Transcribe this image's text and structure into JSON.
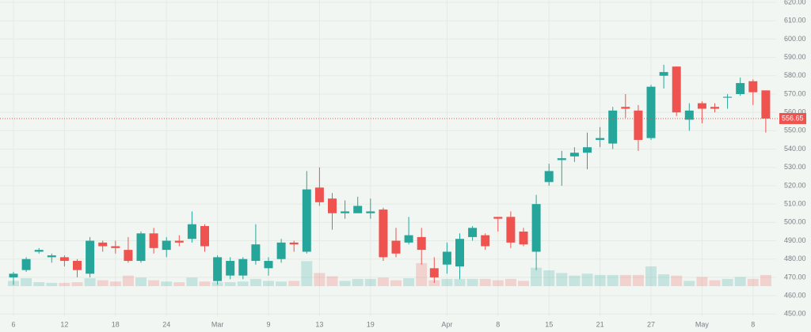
{
  "chart_data": {
    "type": "candlestick",
    "categories": [
      "6",
      null,
      null,
      null,
      "12",
      null,
      null,
      null,
      "18",
      null,
      null,
      null,
      "24",
      null,
      null,
      null,
      "Mar",
      null,
      null,
      null,
      "9",
      null,
      null,
      null,
      "13",
      null,
      null,
      null,
      "19",
      null,
      null,
      null,
      null,
      null,
      "Apr",
      null,
      null,
      null,
      "8",
      null,
      null,
      null,
      "15",
      null,
      null,
      null,
      "21",
      null,
      null,
      null,
      "27",
      null,
      null,
      null,
      "May",
      null,
      null,
      null,
      "8",
      null
    ],
    "open": [
      470,
      474,
      484,
      481,
      481,
      479,
      472,
      489,
      487,
      485,
      479,
      494,
      485,
      490,
      491,
      498,
      468,
      471,
      471,
      479,
      475,
      480,
      489,
      484,
      519,
      513,
      505,
      505,
      505,
      507,
      490,
      489,
      492,
      475,
      477,
      476,
      492,
      493,
      503,
      503,
      495,
      484,
      522,
      534,
      536,
      538,
      545,
      543,
      563,
      561,
      546,
      580,
      585,
      556,
      565,
      563,
      568,
      570,
      577,
      572
    ],
    "high": [
      473,
      481,
      486,
      483,
      482,
      480,
      492,
      490,
      490,
      492,
      495,
      497,
      492,
      493,
      506,
      499,
      482,
      481,
      481,
      499,
      481,
      491,
      490,
      528,
      530,
      516,
      512,
      514,
      513,
      508,
      497,
      503,
      497,
      481,
      489,
      494,
      498,
      494,
      503,
      506,
      497,
      515,
      532,
      539,
      541,
      549,
      552,
      563,
      570,
      564,
      575,
      586,
      585,
      565,
      566,
      565,
      570,
      579,
      578,
      572
    ],
    "low": [
      466,
      473,
      483,
      478,
      476,
      470,
      470,
      484,
      483,
      478,
      478,
      483,
      481,
      487,
      489,
      484,
      466,
      469,
      469,
      477,
      471,
      478,
      484,
      483,
      509,
      496,
      502,
      505,
      502,
      479,
      481,
      488,
      477,
      467,
      472,
      469,
      490,
      485,
      495,
      486,
      487,
      474,
      520,
      520,
      533,
      529,
      541,
      540,
      557,
      539,
      545,
      573,
      558,
      550,
      554,
      560,
      562,
      569,
      564,
      549
    ],
    "close": [
      472,
      480,
      485,
      482,
      479,
      474,
      490,
      487,
      486,
      479,
      494,
      486,
      490,
      489,
      499,
      487,
      481,
      479,
      480,
      488,
      479,
      489,
      488,
      518,
      511,
      505,
      506,
      509,
      506,
      481,
      483,
      493,
      485,
      470,
      484,
      491,
      497,
      487,
      502,
      489,
      488,
      510,
      528,
      535,
      538,
      541,
      546,
      561,
      562,
      545,
      574,
      582,
      560,
      561,
      562,
      562,
      568.5,
      576,
      571,
      556.65
    ],
    "volume": [
      8,
      12,
      6,
      5,
      5,
      6,
      12,
      9,
      7,
      16,
      13,
      9,
      7,
      6,
      13,
      7,
      6,
      6,
      7,
      11,
      8,
      7,
      8,
      38,
      20,
      15,
      8,
      11,
      11,
      13,
      9,
      12,
      35,
      9,
      11,
      11,
      11,
      11,
      9,
      11,
      8,
      28,
      24,
      20,
      16,
      19,
      17,
      17,
      17,
      17,
      30,
      18,
      16,
      8,
      14,
      9,
      11,
      14,
      11,
      17
    ],
    "up_color": "#26a69a",
    "down_color": "#ef5350",
    "vlim": [
      0,
      120
    ],
    "ylim": [
      449.7,
      621.3
    ],
    "yticks": [
      {
        "value": 450,
        "label": "450.00"
      },
      {
        "value": 460,
        "label": "460.00"
      },
      {
        "value": 470,
        "label": "470.00"
      },
      {
        "value": 480,
        "label": "480.00"
      },
      {
        "value": 490,
        "label": "490.00"
      },
      {
        "value": 500,
        "label": "500.00"
      },
      {
        "value": 510,
        "label": "510.00"
      },
      {
        "value": 520,
        "label": "520.00"
      },
      {
        "value": 530,
        "label": "530.00"
      },
      {
        "value": 540,
        "label": "540.00"
      },
      {
        "value": 550,
        "label": "550.00"
      },
      {
        "value": 560,
        "label": "560.00"
      },
      {
        "value": 570,
        "label": "570.00"
      },
      {
        "value": 580,
        "label": "580.00"
      },
      {
        "value": 590,
        "label": "590.00"
      },
      {
        "value": 600,
        "label": "600.00"
      },
      {
        "value": 610,
        "label": "610.00"
      },
      {
        "value": 620,
        "label": "620.00"
      }
    ],
    "last_price": 556.65,
    "grid": true
  }
}
